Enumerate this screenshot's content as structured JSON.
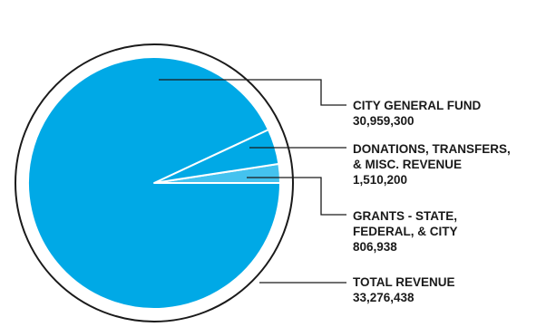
{
  "chart_data": {
    "type": "pie",
    "title": "",
    "series": [
      {
        "name": "",
        "slices": [
          {
            "label_lines": [
              "CITY GENERAL FUND"
            ],
            "value_text": "30,959,300",
            "value": 30959300,
            "color": "#00a9e6"
          },
          {
            "label_lines": [
              "DONATIONS, TRANSFERS,",
              "& MISC. REVENUE"
            ],
            "value_text": "1,510,200",
            "value": 1510200,
            "color": "#00a9e6"
          },
          {
            "label_lines": [
              "GRANTS - STATE,",
              "FEDERAL, & CITY"
            ],
            "value_text": "806,938",
            "value": 806938,
            "color": "#44c2ef"
          }
        ]
      }
    ],
    "total": {
      "label_lines": [
        "TOTAL REVENUE"
      ],
      "value_text": "33,276,438",
      "value": 33276438
    },
    "slice_separator_color": "#ffffff",
    "outer_ring_color": "#1a1a1a",
    "leader_line_color": "#1a1a1a",
    "legend": "callouts-right"
  }
}
